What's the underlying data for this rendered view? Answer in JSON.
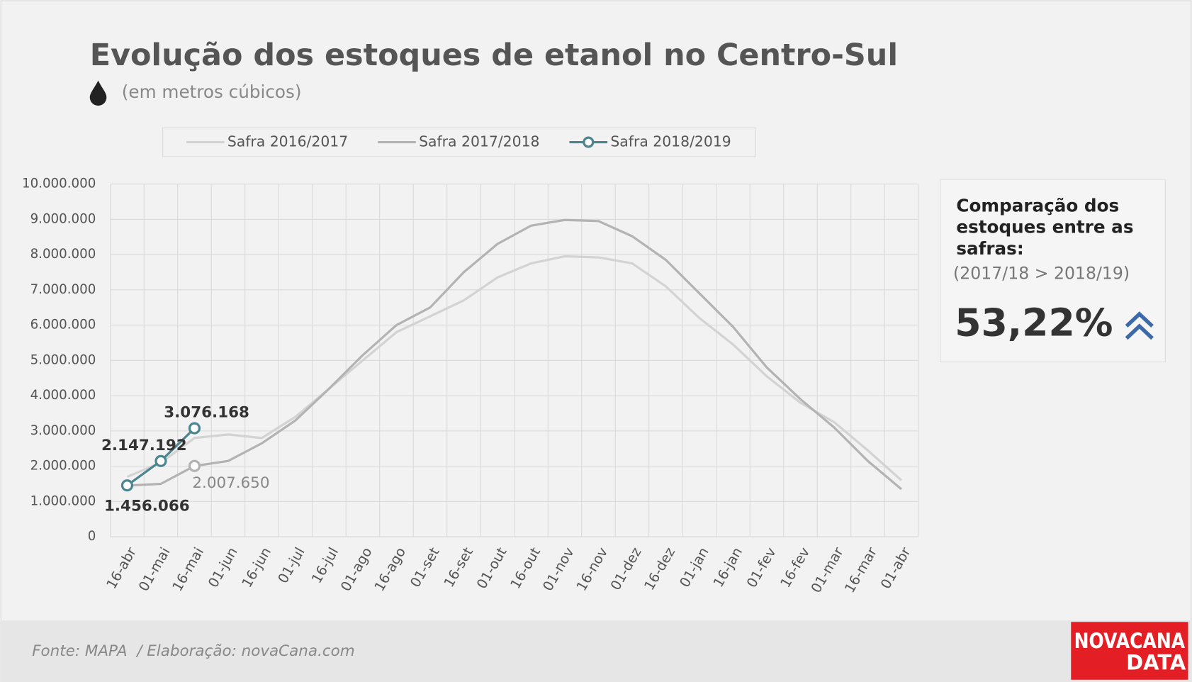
{
  "chart_data": {
    "type": "line",
    "title": "Evolução dos estoques de etanol no Centro-Sul",
    "subtitle": "(em metros cúbicos)",
    "categories": [
      "16-abr",
      "01-mai",
      "16-mai",
      "01-jun",
      "16-jun",
      "01-jul",
      "16-jul",
      "01-ago",
      "16-ago",
      "01-set",
      "16-set",
      "01-out",
      "16-out",
      "01-nov",
      "16-nov",
      "01-dez",
      "16-dez",
      "01-jan",
      "16-jan",
      "01-fev",
      "16-fev",
      "01-mar",
      "16-mar",
      "01-abr"
    ],
    "series": [
      {
        "name": "Safra 2016/2017",
        "color": "#d3d3d3",
        "values": [
          1700000,
          2100000,
          2800000,
          2900000,
          2800000,
          3400000,
          4200000,
          5000000,
          5800000,
          6250000,
          6700000,
          7350000,
          7750000,
          7950000,
          7920000,
          7750000,
          7100000,
          6200000,
          5450000,
          4550000,
          3800000,
          3250000,
          2450000,
          1600000
        ]
      },
      {
        "name": "Safra 2017/2018",
        "color": "#b3b3b3",
        "values": [
          1450000,
          1500000,
          2007650,
          2150000,
          2650000,
          3300000,
          4200000,
          5150000,
          6000000,
          6500000,
          7500000,
          8300000,
          8820000,
          8980000,
          8950000,
          8520000,
          7850000,
          6900000,
          5950000,
          4800000,
          3900000,
          3100000,
          2150000,
          1350000
        ],
        "value_labels": [
          null,
          null,
          "2.007.650",
          null,
          null,
          null,
          null,
          null,
          null,
          null,
          null,
          null,
          null,
          null,
          null,
          null,
          null,
          null,
          null,
          null,
          null,
          null,
          null,
          null
        ]
      },
      {
        "name": "Safra 2018/2019",
        "color": "#4a8590",
        "values": [
          1456066,
          2147192,
          3076168,
          null,
          null,
          null,
          null,
          null,
          null,
          null,
          null,
          null,
          null,
          null,
          null,
          null,
          null,
          null,
          null,
          null,
          null,
          null,
          null,
          null
        ],
        "value_labels": [
          "1.456.066",
          "2.147.192",
          "3.076.168",
          null,
          null,
          null,
          null,
          null,
          null,
          null,
          null,
          null,
          null,
          null,
          null,
          null,
          null,
          null,
          null,
          null,
          null,
          null,
          null,
          null
        ]
      }
    ],
    "ylim": [
      0,
      10000000
    ],
    "yticks": [
      0,
      {
        "value": 1000000,
        "label": "1.000.000"
      },
      {
        "value": 2000000,
        "label": "2.000.000"
      },
      {
        "value": 3000000,
        "label": "3.000.000"
      },
      {
        "value": 4000000,
        "label": "4.000.000"
      },
      {
        "value": 5000000,
        "label": "5.000.000"
      },
      {
        "value": 6000000,
        "label": "6.000.000"
      },
      {
        "value": 7000000,
        "label": "7.000.000"
      },
      {
        "value": 8000000,
        "label": "8.000.000"
      },
      {
        "value": 9000000,
        "label": "9.000.000"
      },
      {
        "value": 10000000,
        "label": "10.000.000"
      }
    ],
    "grid": true,
    "legend": "top"
  },
  "panel": {
    "title": [
      "Comparação dos",
      "estoques entre as",
      "safras:"
    ],
    "subtitle": "(2017/18 > 2018/19)",
    "value": "53,22%"
  },
  "footer": {
    "source": "Fonte: MAPA  / Elaboração: novaCana.com",
    "logo": [
      "NOVACANA",
      "DATA"
    ]
  }
}
